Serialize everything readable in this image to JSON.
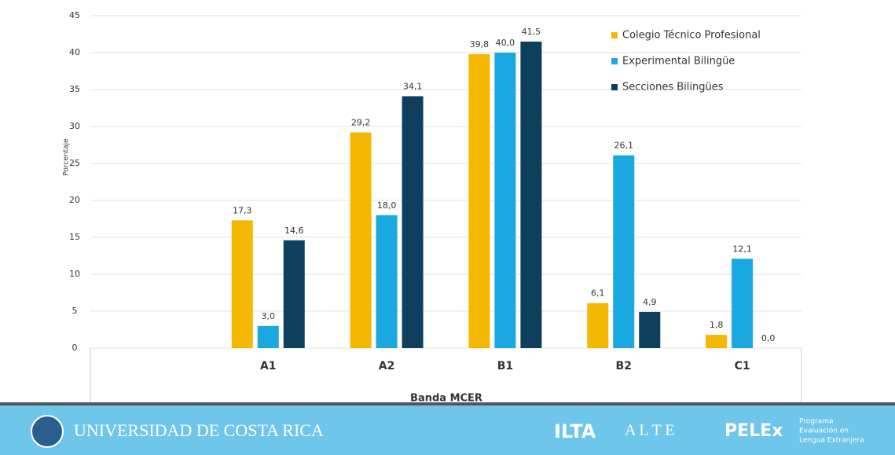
{
  "chart_data": {
    "type": "bar",
    "y_label": "Porcentaje",
    "x_label": "Banda MCER",
    "categories": [
      null,
      "A1",
      "A2",
      "B1",
      "B2",
      "C1"
    ],
    "series": [
      {
        "name": "Colegio Técnico Profesional",
        "color": "#f5b800",
        "values": [
          null,
          17.3,
          29.2,
          39.8,
          6.1,
          1.8
        ],
        "value_labels": [
          null,
          "17,3",
          "29,2",
          "39,8",
          "6,1",
          "1,8"
        ]
      },
      {
        "name": "Experimental Bilingüe",
        "color": "#1aa8e0",
        "values": [
          null,
          3.0,
          18.0,
          40.0,
          26.1,
          12.1
        ],
        "value_labels": [
          null,
          "3,0",
          "18,0",
          "40,0",
          "26,1",
          "12,1"
        ]
      },
      {
        "name": "Secciones Bilingües",
        "color": "#0e3f5c",
        "values": [
          null,
          14.6,
          34.1,
          41.5,
          4.9,
          0.0
        ],
        "value_labels": [
          null,
          "14,6",
          "34,1",
          "41,5",
          "4,9",
          "0,0"
        ]
      }
    ],
    "ylim": [
      0,
      45
    ],
    "yticks": [
      0,
      5,
      10,
      15,
      20,
      25,
      30,
      35,
      40,
      45
    ],
    "grid": true,
    "legend": "top-right"
  },
  "footer": {
    "university": "UNIVERSIDAD DE COSTA RICA",
    "logos": [
      "ILTA",
      "A L T E",
      "PELEx"
    ],
    "program": [
      "Programa",
      "Evaluación en",
      "Lengua Extranjera"
    ]
  }
}
